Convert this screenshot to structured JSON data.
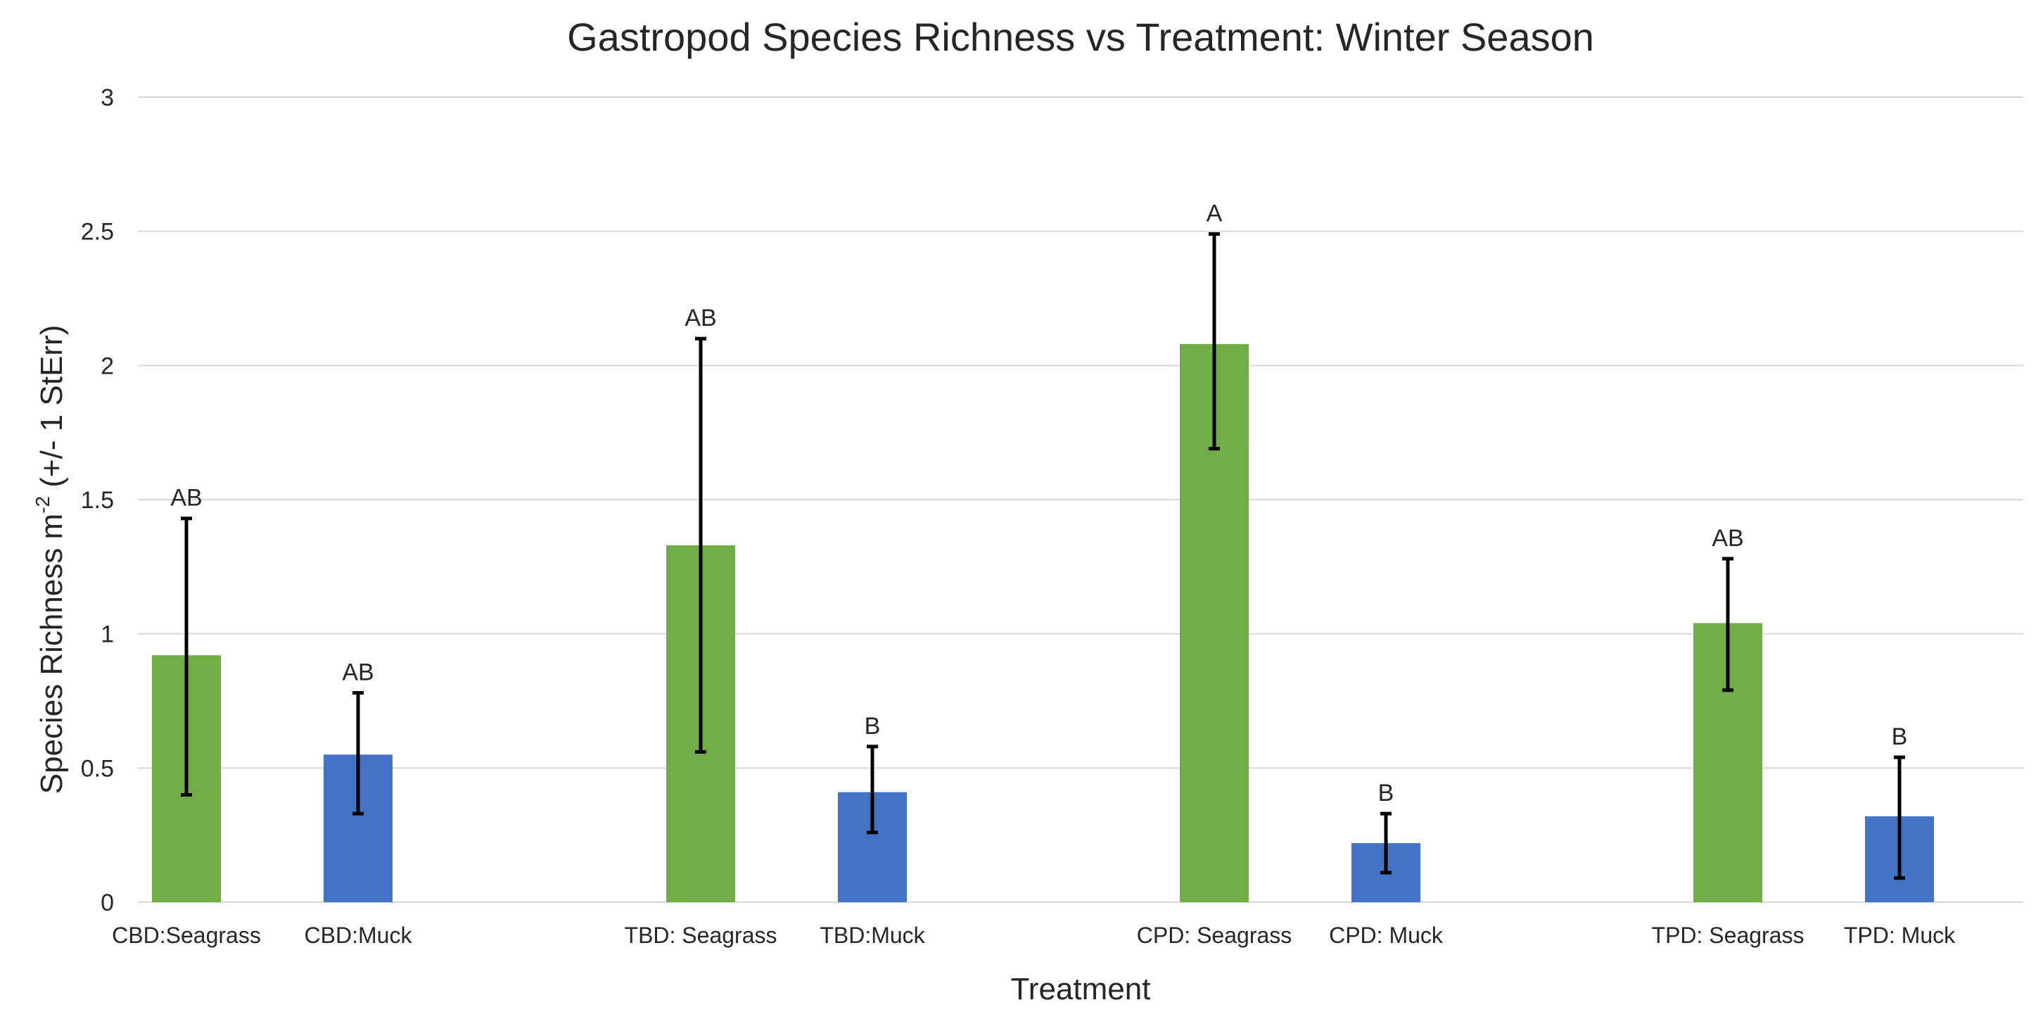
{
  "chart_data": {
    "type": "bar",
    "title": "Gastropod Species Richness vs Treatment: Winter Season",
    "xlabel": "Treatment",
    "ylabel_main": "Species Richness m",
    "ylabel_sup": "-2",
    "ylabel_rest": " (+/- 1 StErr)",
    "ylim": [
      0,
      3
    ],
    "yticks": [
      0,
      0.5,
      1,
      1.5,
      2,
      2.5,
      3
    ],
    "ytick_labels": [
      "0",
      "0.5",
      "1",
      "1.5",
      "2",
      "2.5",
      "3"
    ],
    "grid": true,
    "legend": "none",
    "colors": {
      "Seagrass": "#70ad47",
      "Muck": "#4472c4"
    },
    "categories": [
      "CBD:Seagrass",
      "CBD:Muck",
      "TBD: Seagrass",
      "TBD:Muck",
      "CPD: Seagrass",
      "CPD: Muck",
      "TPD: Seagrass",
      "TPD: Muck"
    ],
    "habitat": [
      "Seagrass",
      "Muck",
      "Seagrass",
      "Muck",
      "Seagrass",
      "Muck",
      "Seagrass",
      "Muck"
    ],
    "values": [
      0.92,
      0.55,
      1.33,
      0.41,
      2.08,
      0.22,
      1.04,
      0.32
    ],
    "error_low": [
      0.4,
      0.33,
      0.56,
      0.26,
      1.69,
      0.11,
      0.79,
      0.09
    ],
    "error_high": [
      1.43,
      0.78,
      2.1,
      0.58,
      2.49,
      0.33,
      1.28,
      0.54
    ],
    "significance_labels": [
      "AB",
      "AB",
      "AB",
      "B",
      "A",
      "B",
      "AB",
      "B"
    ]
  }
}
